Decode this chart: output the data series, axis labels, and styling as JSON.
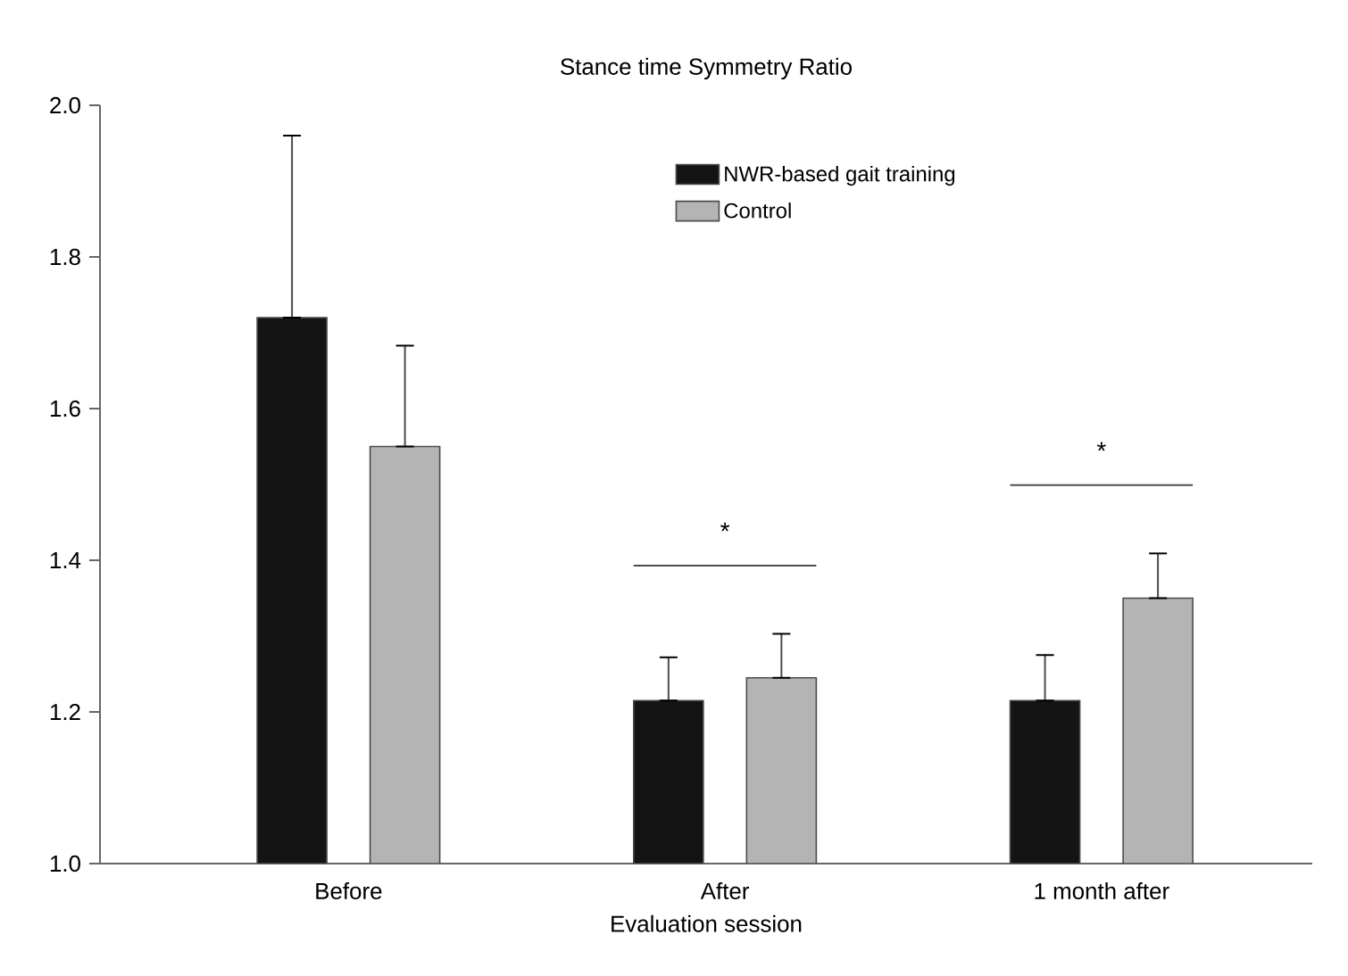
{
  "chart_data": {
    "type": "bar",
    "title": "Stance time Symmetry Ratio",
    "xlabel": "Evaluation session",
    "categories": [
      "Before",
      "After",
      "1 month after"
    ],
    "series": [
      {
        "name": "NWR-based gait training",
        "color": "#141414",
        "values": [
          1.72,
          1.215,
          1.215
        ],
        "errors": [
          [
            1.72,
            1.96
          ],
          [
            1.215,
            1.272
          ],
          [
            1.215,
            1.275
          ]
        ]
      },
      {
        "name": "Control",
        "color": "#b4b4b4",
        "values": [
          1.55,
          1.245,
          1.35
        ],
        "errors": [
          [
            1.55,
            1.683
          ],
          [
            1.245,
            1.303
          ],
          [
            1.35,
            1.409
          ]
        ]
      }
    ],
    "ylim": [
      1.0,
      2.0
    ],
    "yticks": [
      {
        "value": 1.0,
        "label": "1.0"
      },
      1.2,
      1.4,
      1.6,
      1.8,
      {
        "value": 2.0,
        "label": "2.0"
      }
    ],
    "annotations": [
      "*",
      "*"
    ],
    "grid": false,
    "legend": "top right"
  }
}
